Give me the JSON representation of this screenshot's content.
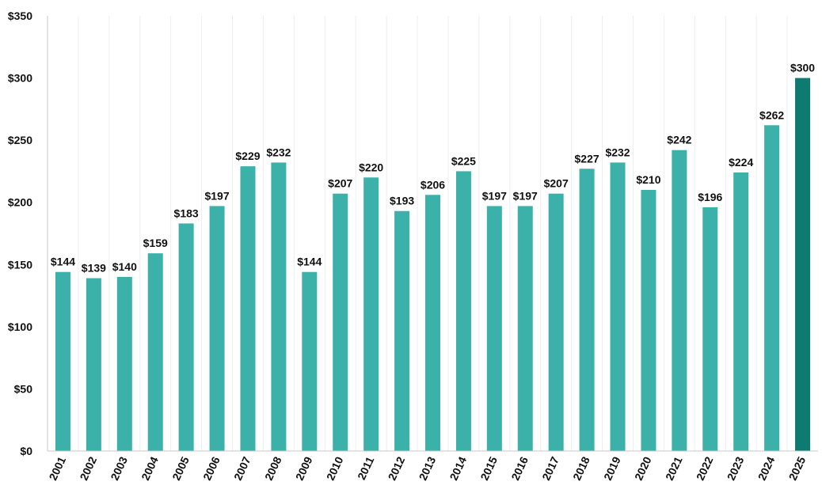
{
  "chart_data": {
    "type": "bar",
    "title": "",
    "xlabel": "",
    "ylabel": "",
    "ylim": [
      0,
      350
    ],
    "y_ticks": [
      0,
      50,
      100,
      150,
      200,
      250,
      300,
      350
    ],
    "y_tick_labels": [
      "$0",
      "$50",
      "$100",
      "$150",
      "$200",
      "$250",
      "$300",
      "$350"
    ],
    "grid": "vertical",
    "legend": "none",
    "categories": [
      "2001",
      "2002",
      "2003",
      "2004",
      "2005",
      "2006",
      "2007",
      "2008",
      "2009",
      "2010",
      "2011",
      "2012",
      "2013",
      "2014",
      "2015",
      "2016",
      "2017",
      "2018",
      "2019",
      "2020",
      "2021",
      "2022",
      "2023",
      "2024",
      "2025"
    ],
    "values": [
      144,
      139,
      140,
      159,
      183,
      197,
      229,
      232,
      144,
      207,
      220,
      193,
      206,
      225,
      197,
      197,
      207,
      227,
      232,
      210,
      242,
      196,
      224,
      262,
      300
    ],
    "data_labels": [
      "$144",
      "$139",
      "$140",
      "$159",
      "$183",
      "$197",
      "$229",
      "$232",
      "$144",
      "$207",
      "$220",
      "$193",
      "$206",
      "$225",
      "$197",
      "$197",
      "$207",
      "$227",
      "$232",
      "$210",
      "$242",
      "$196",
      "$224",
      "$262",
      "$300"
    ],
    "colors": {
      "bar": "#3bb1aa",
      "highlight_bar": "#0e7a70",
      "highlight_category": "2025",
      "axis": "#c8c8c8",
      "grid": "#eeeeee",
      "text": "#111111"
    }
  }
}
